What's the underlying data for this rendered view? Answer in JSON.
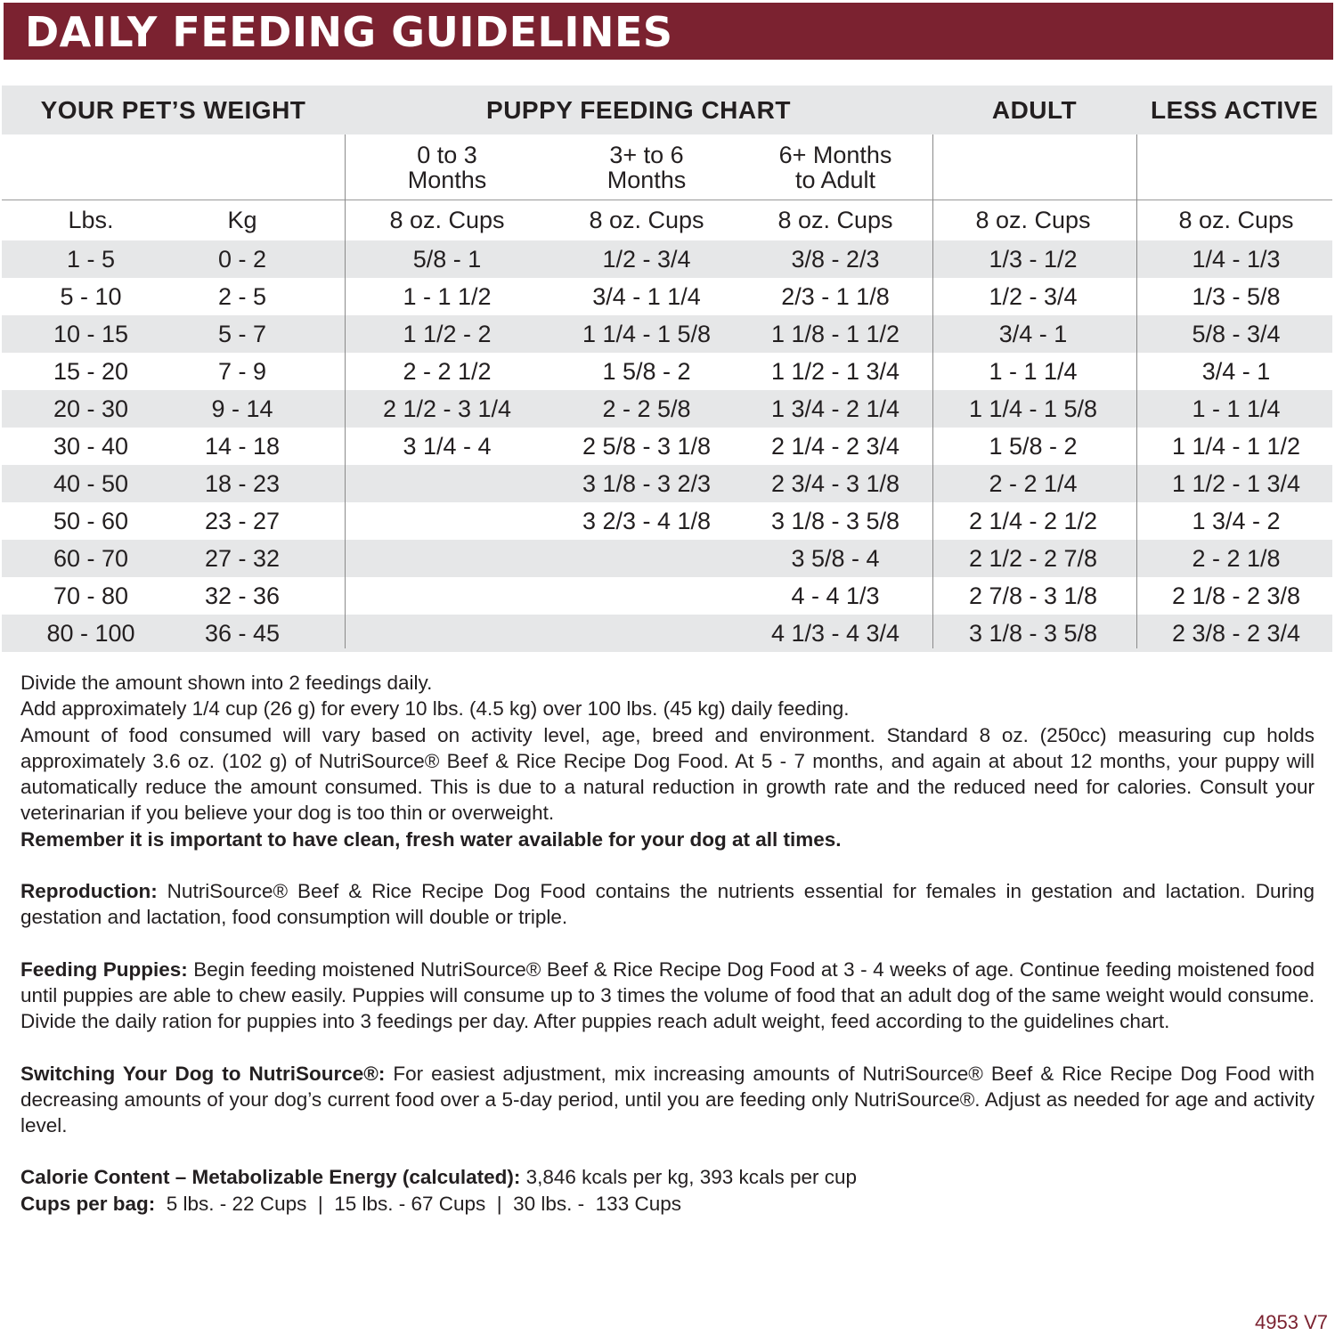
{
  "title": "DAILY FEEDING GUIDELINES",
  "table": {
    "group_headers": [
      "YOUR PET’S WEIGHT",
      "PUPPY FEEDING CHART",
      "ADULT",
      "LESS ACTIVE"
    ],
    "age_headers": [
      [
        "0 to 3",
        "Months"
      ],
      [
        "3+ to 6",
        "Months"
      ],
      [
        "6+ Months",
        "to Adult"
      ]
    ],
    "unit_headers": [
      "Lbs.",
      "Kg",
      "8 oz. Cups",
      "8 oz. Cups",
      "8 oz. Cups",
      "8 oz. Cups",
      "8 oz. Cups"
    ],
    "rows": [
      [
        "1 - 5",
        "0 - 2",
        "5/8 - 1",
        "1/2 - 3/4",
        "3/8 - 2/3",
        "1/3 - 1/2",
        "1/4 - 1/3"
      ],
      [
        "5 - 10",
        "2 - 5",
        "1 - 1 1/2",
        "3/4 - 1 1/4",
        "2/3 - 1 1/8",
        "1/2 - 3/4",
        "1/3 - 5/8"
      ],
      [
        "10 - 15",
        "5 - 7",
        "1 1/2 - 2",
        "1 1/4 - 1 5/8",
        "1 1/8 - 1 1/2",
        "3/4 - 1",
        "5/8 - 3/4"
      ],
      [
        "15 - 20",
        "7 - 9",
        "2 - 2 1/2",
        "1 5/8 - 2",
        "1 1/2 - 1 3/4",
        "1 - 1 1/4",
        "3/4 - 1"
      ],
      [
        "20 - 30",
        "9 - 14",
        "2 1/2 - 3 1/4",
        "2 - 2 5/8",
        "1 3/4 - 2 1/4",
        "1 1/4 - 1 5/8",
        "1 - 1 1/4"
      ],
      [
        "30 - 40",
        "14 - 18",
        "3 1/4 - 4",
        "2 5/8 - 3 1/8",
        "2 1/4 - 2 3/4",
        "1 5/8 - 2",
        "1 1/4 - 1 1/2"
      ],
      [
        "40 - 50",
        "18 - 23",
        "",
        "3 1/8 - 3 2/3",
        "2 3/4 - 3 1/8",
        "2 - 2 1/4",
        "1 1/2 - 1 3/4"
      ],
      [
        "50 - 60",
        "23 - 27",
        "",
        "3 2/3 - 4 1/8",
        "3 1/8 - 3 5/8",
        "2 1/4 - 2 1/2",
        "1 3/4 - 2"
      ],
      [
        "60 - 70",
        "27 - 32",
        "",
        "",
        "3 5/8 - 4",
        "2 1/2 - 2 7/8",
        "2 - 2 1/8"
      ],
      [
        "70 - 80",
        "32 - 36",
        "",
        "",
        "4 - 4 1/3",
        "2 7/8 - 3 1/8",
        "2 1/8 - 2 3/8"
      ],
      [
        "80 - 100",
        "36 - 45",
        "",
        "",
        "4 1/3 - 4 3/4",
        "3 1/8 - 3 5/8",
        "2 3/8 - 2 3/4"
      ]
    ]
  },
  "notes": {
    "line1": "Divide the amount shown into 2 feedings daily.",
    "line2": "Add approximately 1/4 cup (26 g) for every 10 lbs. (4.5 kg) over 100 lbs. (45 kg) daily feeding.",
    "line3": "Amount of food consumed will vary based on activity level, age, breed and environment. Standard 8 oz. (250cc) measuring cup holds approximately 3.6 oz. (102 g)  of NutriSource® Beef & Rice Recipe Dog Food. At 5 - 7 months, and again at about 12 months, your puppy will automatically reduce the amount consumed. This is due to a natural reduction in growth rate and the reduced need for calories. Consult your veterinarian if you believe your dog is too thin or overweight.",
    "water": "Remember it is important to have clean, fresh water available for your dog at all times.",
    "reproduction_label": "Reproduction:",
    "reproduction": " NutriSource® Beef & Rice Recipe Dog Food contains the nutrients essential for females in gestation and lactation. During gestation and lactation, food consumption will double or triple.",
    "puppies_label": "Feeding Puppies:",
    "puppies": " Begin feeding moistened NutriSource® Beef & Rice Recipe Dog Food at 3 - 4 weeks of age. Continue feeding moistened food until puppies are able to chew easily. Puppies will consume up to 3 times the volume of food that an adult dog of the same weight would consume. Divide the daily ration for puppies into 3 feedings per day. After puppies reach adult weight, feed according to the guidelines chart.",
    "switching_label": "Switching Your Dog to NutriSource®:",
    "switching": " For easiest adjustment, mix increasing amounts of NutriSource® Beef & Rice Recipe Dog Food with decreasing amounts of your dog’s current food over a 5-day period, until you are feeding only NutriSource®. Adjust as needed for age and activity level.",
    "calorie_label": "Calorie Content – Metabolizable Energy (calculated):",
    "calorie": " 3,846 kcals per kg, 393 kcals per cup",
    "cups_label": "Cups per bag:",
    "cups": "  5 lbs. - 22 Cups  |  15 lbs. - 67 Cups  |  30 lbs. -  133 Cups"
  },
  "code": "4953 V7",
  "colors": {
    "banner": "#7b2230",
    "row_stripe": "#e6e7e8"
  }
}
